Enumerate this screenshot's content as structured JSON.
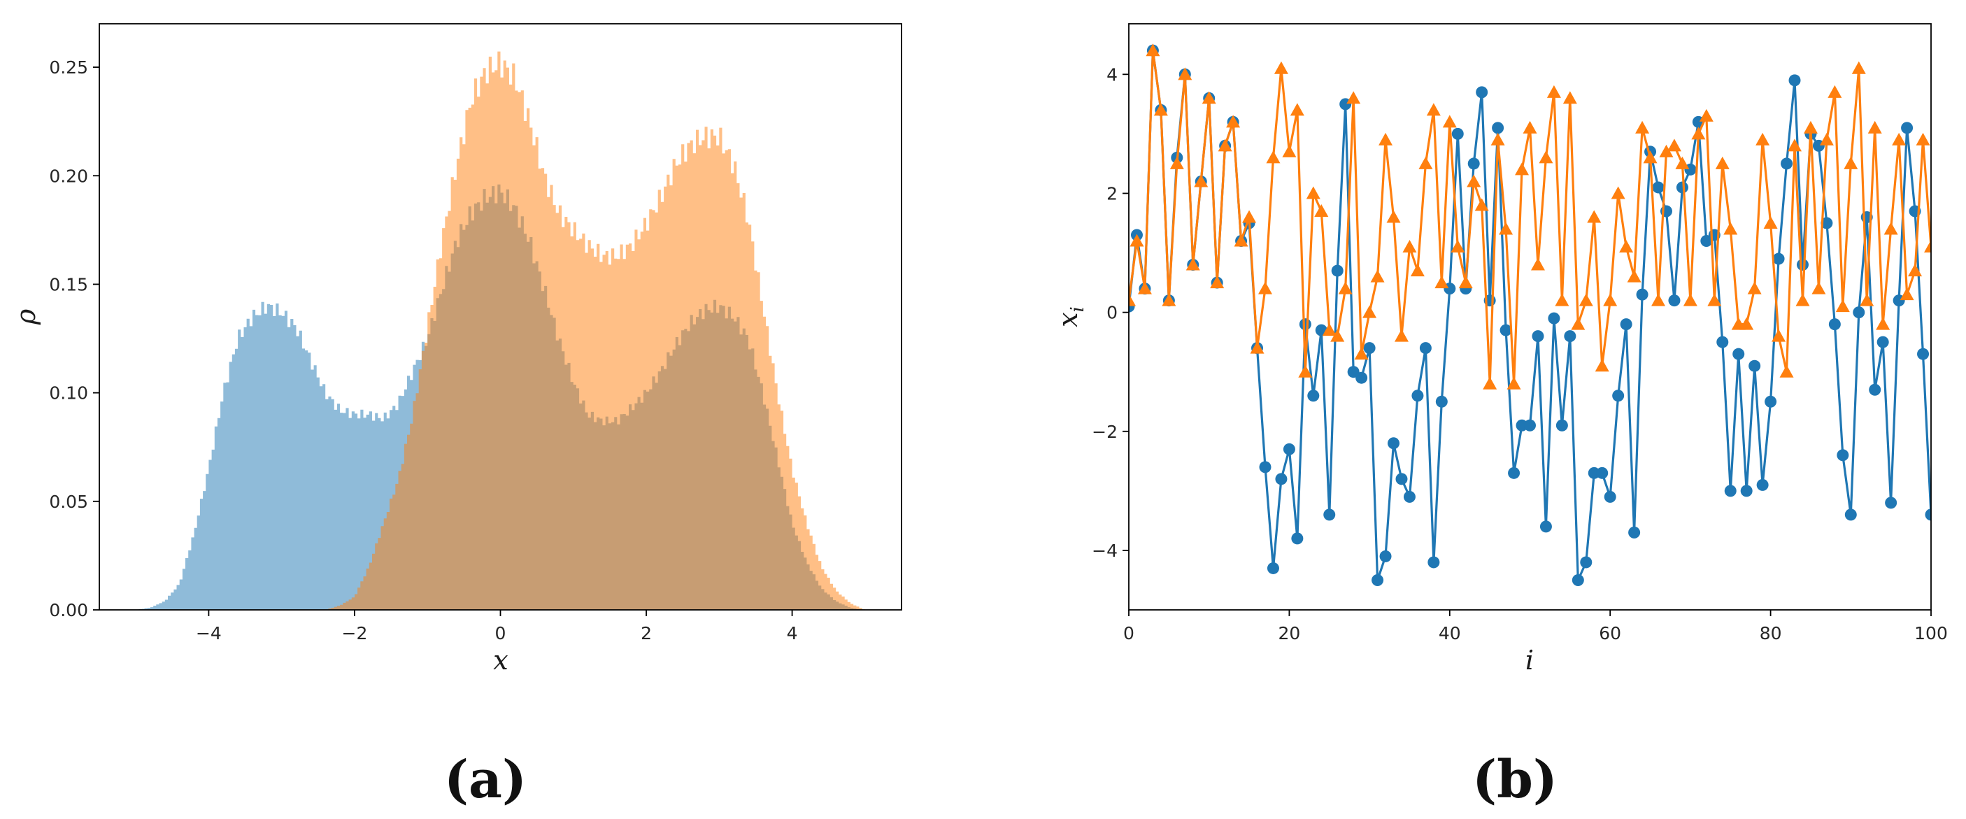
{
  "chart_data": [
    {
      "panel_label": "(a)",
      "type": "area",
      "subtype": "histogram-density",
      "xlabel": "x",
      "ylabel": "ρ",
      "xlim": [
        -5.5,
        5.5
      ],
      "ylim": [
        0,
        0.27
      ],
      "xticks": [
        -4,
        -2,
        0,
        2,
        4
      ],
      "xtick_labels": [
        "−4",
        "−2",
        "0",
        "2",
        "4"
      ],
      "yticks": [
        0,
        0.05,
        0.1,
        0.15,
        0.2,
        0.25
      ],
      "ytick_labels": [
        "0.00",
        "0.05",
        "0.10",
        "0.15",
        "0.20",
        "0.25"
      ],
      "grid": false,
      "x": [
        -5.0,
        -4.8,
        -4.6,
        -4.4,
        -4.2,
        -4.0,
        -3.8,
        -3.6,
        -3.4,
        -3.2,
        -3.0,
        -2.8,
        -2.6,
        -2.4,
        -2.2,
        -2.0,
        -1.8,
        -1.6,
        -1.4,
        -1.2,
        -1.0,
        -0.8,
        -0.6,
        -0.4,
        -0.2,
        0.0,
        0.2,
        0.4,
        0.6,
        0.8,
        1.0,
        1.2,
        1.4,
        1.6,
        1.8,
        2.0,
        2.2,
        2.4,
        2.6,
        2.8,
        3.0,
        3.2,
        3.4,
        3.6,
        3.8,
        4.0,
        4.2,
        4.4,
        4.6,
        4.8,
        5.0
      ],
      "series": [
        {
          "color": "#1f77b4",
          "opacity": 0.5,
          "values": [
            0.0,
            0.001,
            0.004,
            0.012,
            0.035,
            0.065,
            0.1,
            0.125,
            0.135,
            0.14,
            0.137,
            0.13,
            0.115,
            0.1,
            0.092,
            0.09,
            0.09,
            0.088,
            0.095,
            0.11,
            0.125,
            0.148,
            0.17,
            0.183,
            0.19,
            0.193,
            0.185,
            0.17,
            0.148,
            0.125,
            0.105,
            0.09,
            0.087,
            0.087,
            0.093,
            0.1,
            0.11,
            0.122,
            0.132,
            0.138,
            0.14,
            0.135,
            0.125,
            0.1,
            0.07,
            0.04,
            0.022,
            0.01,
            0.004,
            0.001,
            0.0
          ]
        },
        {
          "color": "#ff7f0e",
          "opacity": 0.5,
          "values": [
            0.0,
            0.0,
            0.0,
            0.0,
            0.0,
            0.0,
            0.0,
            0.0,
            0.0,
            0.0,
            0.0,
            0.0,
            0.0,
            0.0,
            0.002,
            0.006,
            0.02,
            0.04,
            0.06,
            0.09,
            0.13,
            0.17,
            0.205,
            0.235,
            0.248,
            0.252,
            0.245,
            0.225,
            0.2,
            0.183,
            0.175,
            0.168,
            0.163,
            0.163,
            0.168,
            0.178,
            0.19,
            0.205,
            0.214,
            0.218,
            0.218,
            0.205,
            0.18,
            0.14,
            0.1,
            0.065,
            0.04,
            0.02,
            0.009,
            0.003,
            0.0
          ]
        }
      ]
    },
    {
      "panel_label": "(b)",
      "type": "line",
      "xlabel": "i",
      "ylabel": "x",
      "ylabel_subscript": "i",
      "xlim": [
        0,
        100
      ],
      "ylim": [
        -5,
        4.85
      ],
      "xticks": [
        0,
        20,
        40,
        60,
        80,
        100
      ],
      "xtick_labels": [
        "0",
        "20",
        "40",
        "60",
        "80",
        "100"
      ],
      "yticks": [
        -4,
        -2,
        0,
        2,
        4
      ],
      "ytick_labels": [
        "−4",
        "−2",
        "0",
        "2",
        "4"
      ],
      "grid": false,
      "x": [
        0,
        1,
        2,
        3,
        4,
        5,
        6,
        7,
        8,
        9,
        10,
        11,
        12,
        13,
        14,
        15,
        16,
        17,
        18,
        19,
        20,
        21,
        22,
        23,
        24,
        25,
        26,
        27,
        28,
        29,
        30,
        31,
        32,
        33,
        34,
        35,
        36,
        37,
        38,
        39,
        40,
        41,
        42,
        43,
        44,
        45,
        46,
        47,
        48,
        49,
        50,
        51,
        52,
        53,
        54,
        55,
        56,
        57,
        58,
        59,
        60,
        61,
        62,
        63,
        64,
        65,
        66,
        67,
        68,
        69,
        70,
        71,
        72,
        73,
        74,
        75,
        76,
        77,
        78,
        79,
        80,
        81,
        82,
        83,
        84,
        85,
        86,
        87,
        88,
        89,
        90,
        91,
        92,
        93,
        94,
        95,
        96,
        97,
        98,
        99,
        100
      ],
      "series": [
        {
          "color": "#1f77b4",
          "marker": "circle",
          "values": [
            0.1,
            1.3,
            0.4,
            4.4,
            3.4,
            0.2,
            2.6,
            4.0,
            0.8,
            2.2,
            3.6,
            0.5,
            2.8,
            3.2,
            1.2,
            1.5,
            -0.6,
            -2.6,
            -4.3,
            -2.8,
            -2.3,
            -3.8,
            -0.2,
            -1.4,
            -0.3,
            -3.4,
            0.7,
            3.5,
            -1.0,
            -1.1,
            -0.6,
            -4.5,
            -4.1,
            -2.2,
            -2.8,
            -3.1,
            -1.4,
            -0.6,
            -4.2,
            -1.5,
            0.4,
            3.0,
            0.4,
            2.5,
            3.7,
            0.2,
            3.1,
            -0.3,
            -2.7,
            -1.9,
            -1.9,
            -0.4,
            -3.6,
            -0.1,
            -1.9,
            -0.4,
            -4.5,
            -4.2,
            -2.7,
            -2.7,
            -3.1,
            -1.4,
            -0.2,
            -3.7,
            0.3,
            2.7,
            2.1,
            1.7,
            0.2,
            2.1,
            2.4,
            3.2,
            1.2,
            1.3,
            -0.5,
            -3.0,
            -0.7,
            -3.0,
            -0.9,
            -2.9,
            -1.5,
            0.9,
            2.5,
            3.9,
            0.8,
            3.0,
            2.8,
            1.5,
            -0.2,
            -2.4,
            -3.4,
            0.0,
            1.6,
            -1.3,
            -0.5,
            -3.2,
            0.2,
            3.1,
            1.7,
            -0.7,
            -3.4
          ]
        },
        {
          "color": "#ff7f0e",
          "marker": "triangle",
          "values": [
            0.2,
            1.2,
            0.4,
            4.4,
            3.4,
            0.2,
            2.5,
            4.0,
            0.8,
            2.2,
            3.6,
            0.5,
            2.8,
            3.2,
            1.2,
            1.6,
            -0.6,
            0.4,
            2.6,
            4.1,
            2.7,
            3.4,
            -1.0,
            2.0,
            1.7,
            -0.3,
            -0.4,
            0.4,
            3.6,
            -0.7,
            0.0,
            0.6,
            2.9,
            1.6,
            -0.4,
            1.1,
            0.7,
            2.5,
            3.4,
            0.5,
            3.2,
            1.1,
            0.5,
            2.2,
            1.8,
            -1.2,
            2.9,
            1.4,
            -1.2,
            2.4,
            3.1,
            0.8,
            2.6,
            3.7,
            0.2,
            3.6,
            -0.2,
            0.2,
            1.6,
            -0.9,
            0.2,
            2.0,
            1.1,
            0.6,
            3.1,
            2.6,
            0.2,
            2.7,
            2.8,
            2.5,
            0.2,
            3.0,
            3.3,
            0.2,
            2.5,
            1.4,
            -0.2,
            -0.2,
            0.4,
            2.9,
            1.5,
            -0.4,
            -1.0,
            2.8,
            0.2,
            3.1,
            0.4,
            2.9,
            3.7,
            0.1,
            2.5,
            4.1,
            0.2,
            3.1,
            -0.2,
            1.4,
            2.9,
            0.3,
            0.7,
            2.9,
            1.1
          ]
        }
      ]
    }
  ]
}
